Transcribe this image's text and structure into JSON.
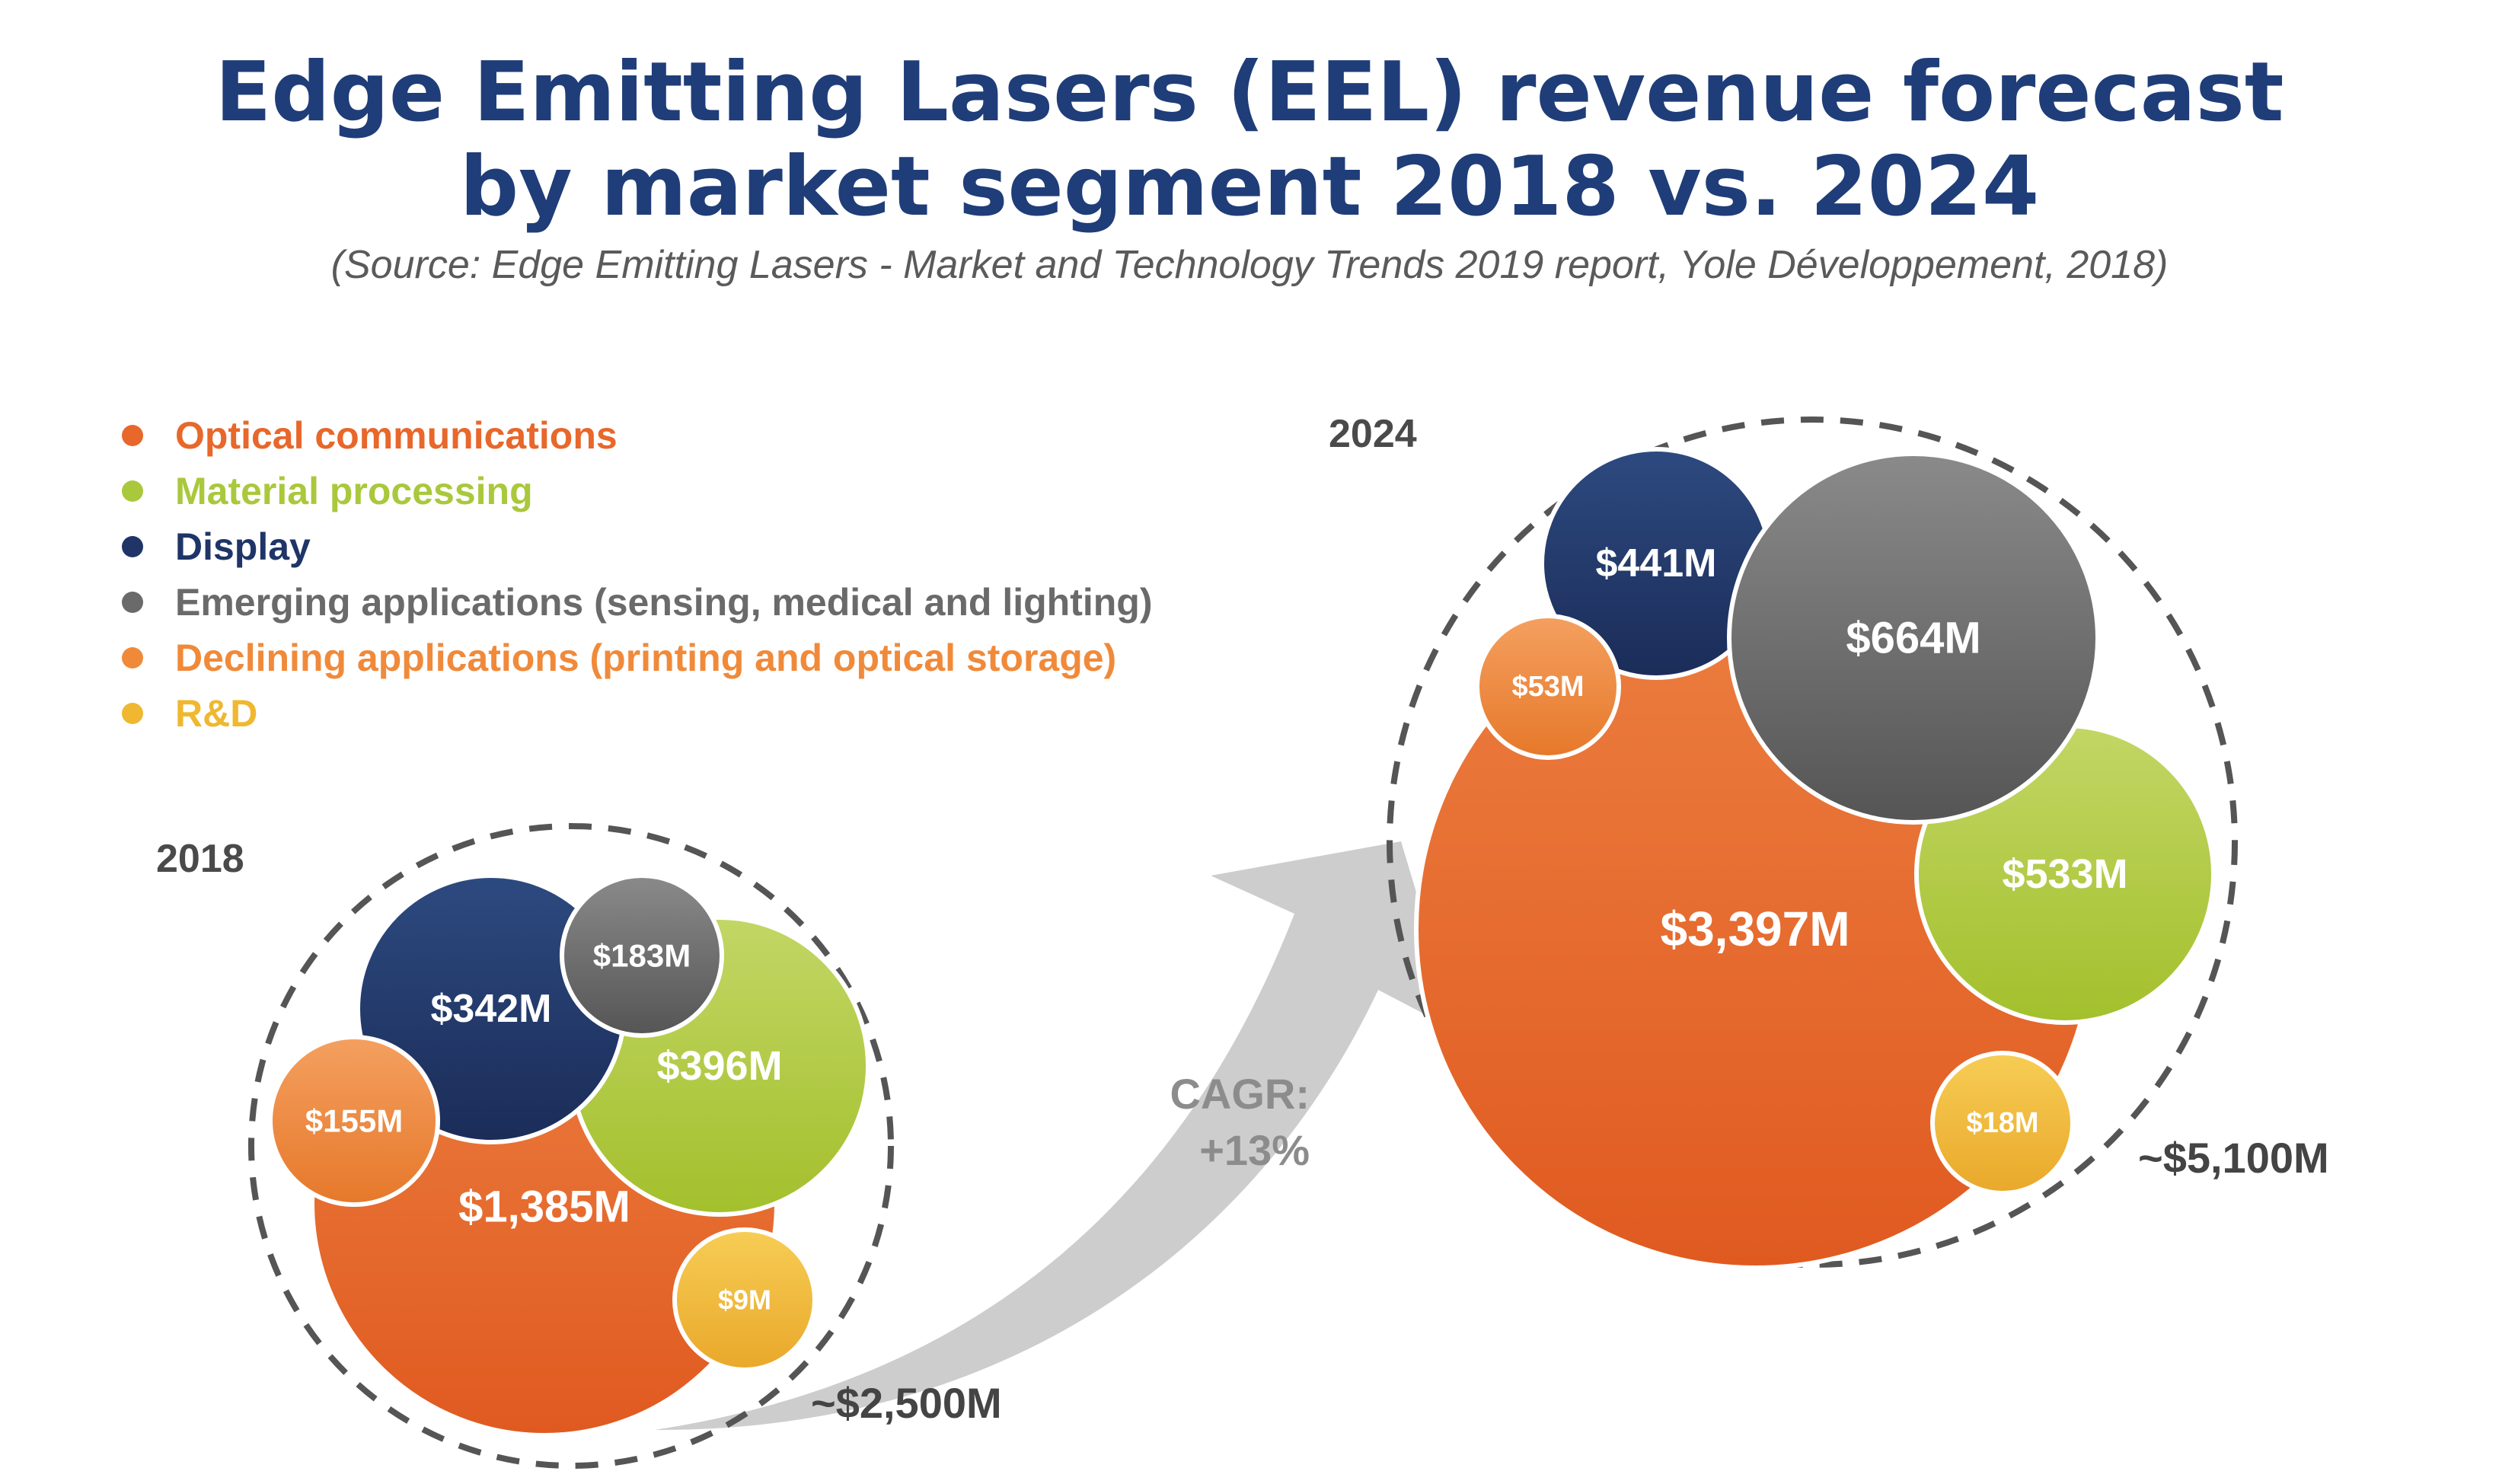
{
  "title_line1": "Edge Emitting Lasers (EEL) revenue forecast",
  "title_line2": "by market segment 2018 vs. 2024",
  "source": "(Source: Edge Emitting Lasers - Market and Technology Trends 2019 report, Yole Développement, 2018)",
  "legend": [
    {
      "label": "Optical communications",
      "color": "#e8672a"
    },
    {
      "label": "Material processing",
      "color": "#a9c83c"
    },
    {
      "label": "Display",
      "color": "#1f3568"
    },
    {
      "label": "Emerging applications (sensing, medical and lighting)",
      "color": "#6a6a6a"
    },
    {
      "label": "Declining applications (printing and optical storage)",
      "color": "#f08a3a"
    },
    {
      "label": "R&D",
      "color": "#f0b830"
    }
  ],
  "cagr_line1": "CAGR:",
  "cagr_line2": "+13%",
  "chart_data": {
    "type": "bubble",
    "title": "Edge Emitting Lasers (EEL) revenue forecast by market segment 2018 vs. 2024",
    "unit": "$M",
    "cagr": "+13%",
    "groups": [
      {
        "year": "2018",
        "total_label": "~$2,500M",
        "segments": [
          {
            "segment": "Optical communications",
            "value": 1385,
            "label": "$1,385M"
          },
          {
            "segment": "Material processing",
            "value": 396,
            "label": "$396M"
          },
          {
            "segment": "Display",
            "value": 342,
            "label": "$342M"
          },
          {
            "segment": "Emerging applications (sensing, medical and lighting)",
            "value": 183,
            "label": "$183M"
          },
          {
            "segment": "Declining applications (printing and optical storage)",
            "value": 155,
            "label": "$155M"
          },
          {
            "segment": "R&D",
            "value": 9,
            "label": "$9M"
          }
        ]
      },
      {
        "year": "2024",
        "total_label": "~$5,100M",
        "segments": [
          {
            "segment": "Optical communications",
            "value": 3397,
            "label": "$3,397M"
          },
          {
            "segment": "Material processing",
            "value": 533,
            "label": "$533M"
          },
          {
            "segment": "Display",
            "value": 441,
            "label": "$441M"
          },
          {
            "segment": "Emerging applications (sensing, medical and lighting)",
            "value": 664,
            "label": "$664M"
          },
          {
            "segment": "Declining applications (printing and optical storage)",
            "value": 53,
            "label": "$53M"
          },
          {
            "segment": "R&D",
            "value": 18,
            "label": "$18M"
          }
        ]
      }
    ]
  }
}
